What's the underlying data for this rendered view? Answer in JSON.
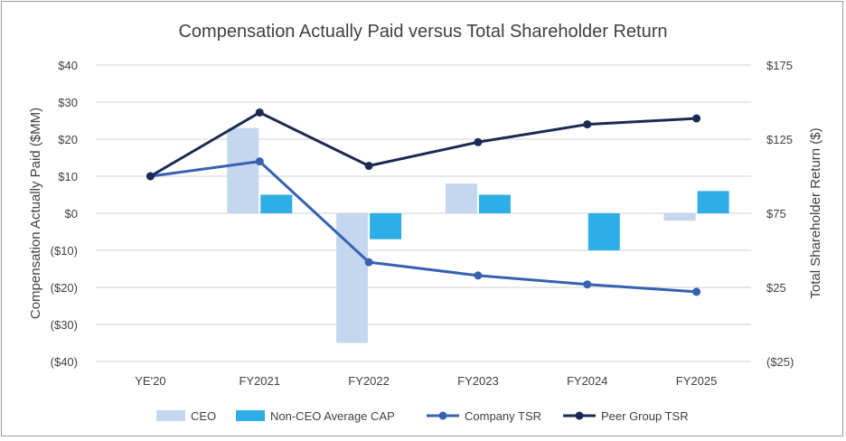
{
  "chart_data": {
    "type": "bar+line",
    "title": "Compensation Actually Paid versus Total Shareholder Return",
    "categories": [
      "YE'20",
      "FY2021",
      "FY2022",
      "FY2023",
      "FY2024",
      "FY2025"
    ],
    "ylabel_left": "Compensation Actually Paid ($MM)",
    "ylabel_right": "Total Shareholder Return ($)",
    "ylim_left": [
      -40,
      40
    ],
    "ylim_right": [
      -25,
      175
    ],
    "yticks_left": [
      "$40",
      "$30",
      "$20",
      "$10",
      "$0",
      "($10)",
      "($20)",
      "($30)",
      "($40)"
    ],
    "yticks_right": [
      "$175",
      "$125",
      "$75",
      "$25",
      "($25)"
    ],
    "grid": true,
    "legend_position": "bottom",
    "bar_series": [
      {
        "name": "CEO",
        "color": "#c5d7ee",
        "values": [
          null,
          23,
          -35,
          8,
          0,
          -2
        ]
      },
      {
        "name": "Non-CEO Average CAP",
        "color": "#2eaee6",
        "values": [
          null,
          5,
          -7,
          5,
          -10,
          6
        ]
      }
    ],
    "line_series": [
      {
        "name": "Company TSR",
        "color": "#3661b0",
        "axis": "right",
        "values": [
          100,
          110,
          42,
          33,
          27,
          22
        ]
      },
      {
        "name": "Peer Group TSR",
        "color": "#1b2a52",
        "axis": "right",
        "values": [
          100,
          143,
          107,
          123,
          135,
          139
        ]
      }
    ]
  }
}
